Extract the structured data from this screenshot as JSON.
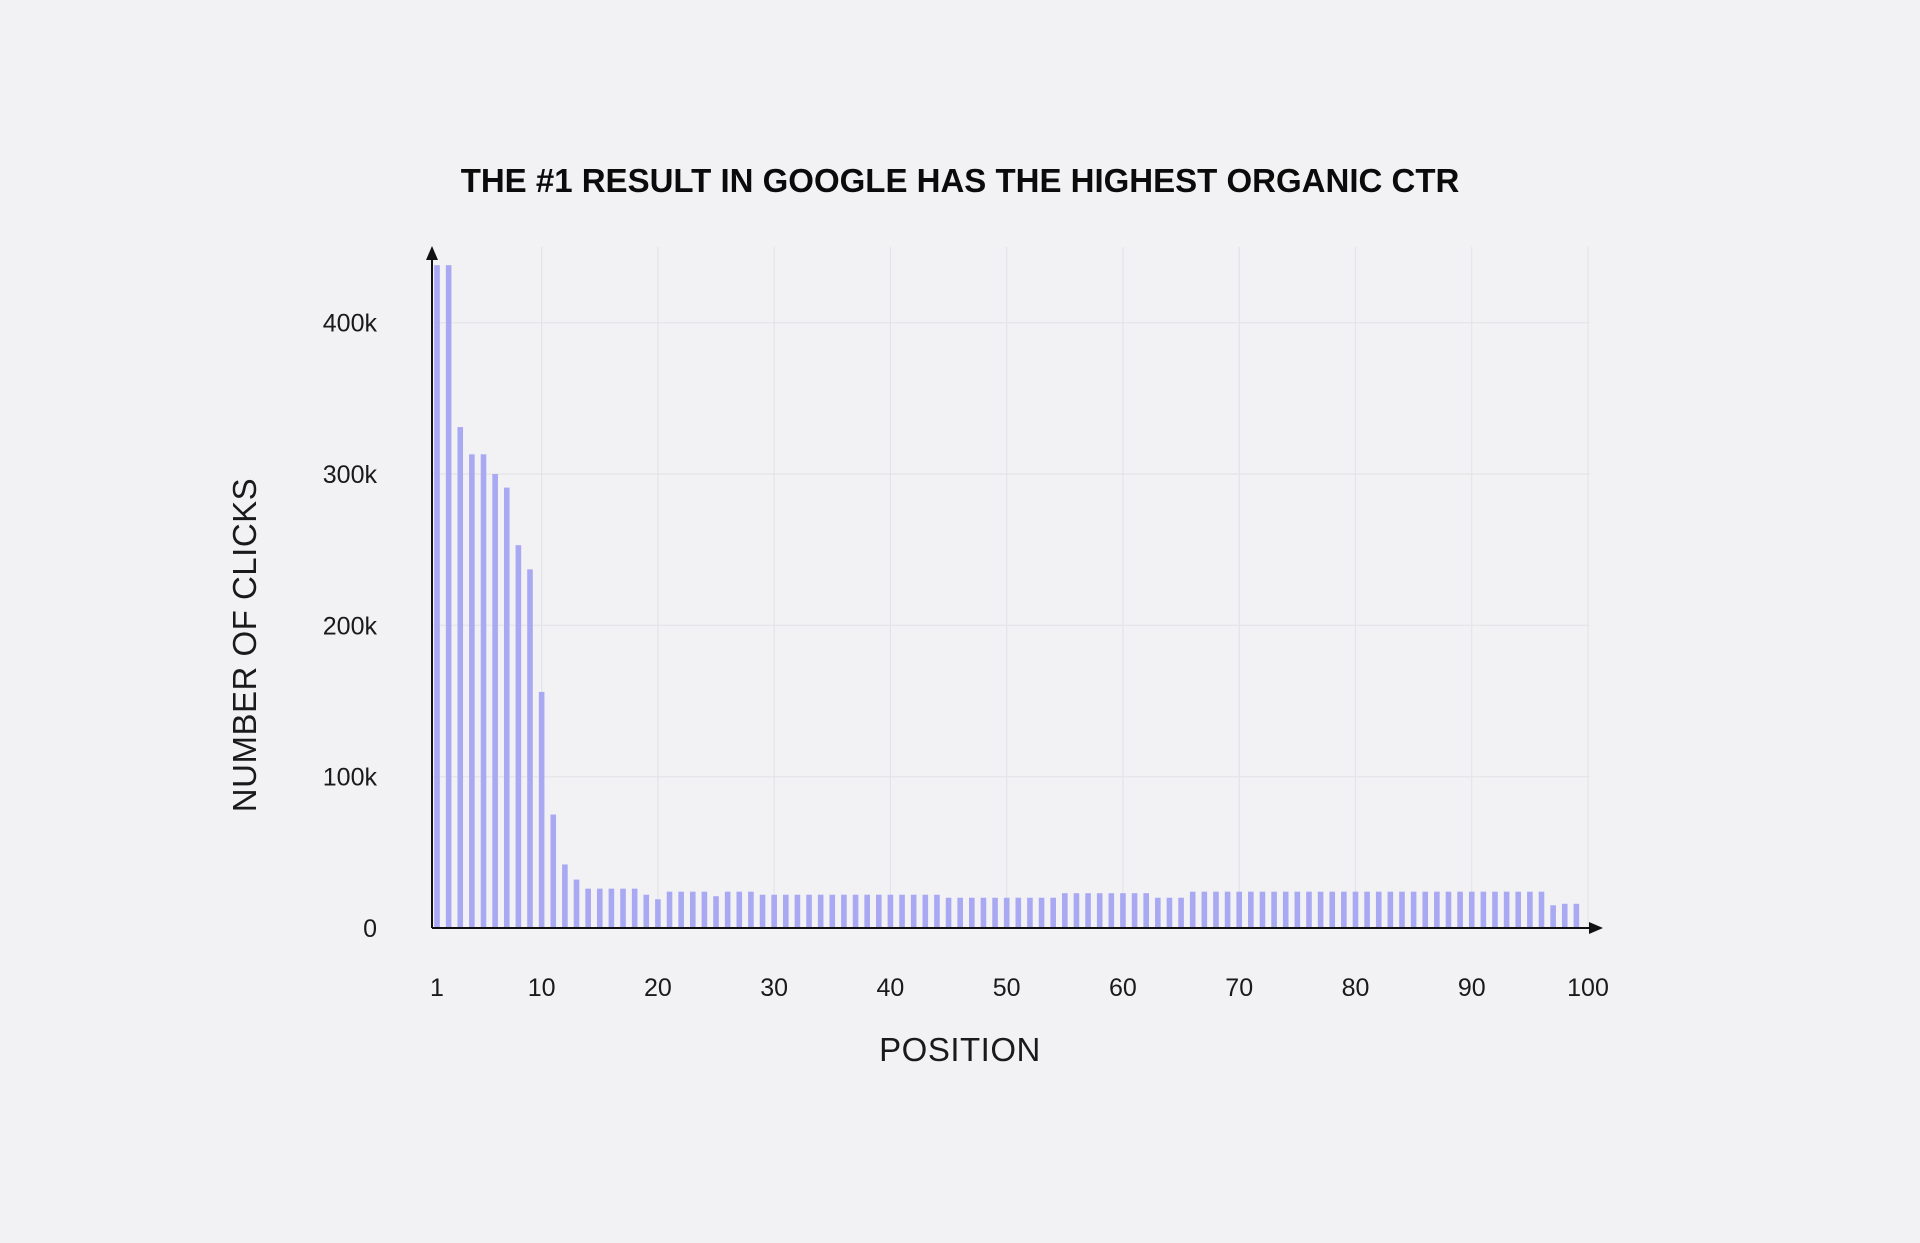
{
  "chart_data": {
    "type": "bar",
    "title": "THE #1 RESULT IN GOOGLE HAS THE HIGHEST ORGANIC CTR",
    "xlabel": "POSITION",
    "ylabel": "NUMBER OF CLICKS",
    "x_ticks": [
      "1",
      "10",
      "20",
      "30",
      "40",
      "50",
      "60",
      "70",
      "80",
      "90",
      "100"
    ],
    "y_ticks": [
      {
        "value": 0,
        "label": "0"
      },
      {
        "value": 100000,
        "label": "100k"
      },
      {
        "value": 200000,
        "label": "200k"
      },
      {
        "value": 300000,
        "label": "300k"
      },
      {
        "value": 400000,
        "label": "400k"
      }
    ],
    "ylim": [
      0,
      450000
    ],
    "xlim": [
      1,
      100
    ],
    "grid": true,
    "bar_color": "#a9a8f2",
    "series": [
      {
        "values": [
          438000,
          438000,
          331000,
          313000,
          313000,
          300000,
          291000,
          253000,
          237000,
          156000,
          75000,
          42000,
          32000,
          26000,
          26000,
          26000,
          26000,
          26000,
          22000,
          19000,
          24000,
          24000,
          24000,
          24000,
          21000,
          24000,
          24000,
          24000,
          22000,
          22000,
          22000,
          22000,
          22000,
          22000,
          22000,
          22000,
          22000,
          22000,
          22000,
          22000,
          22000,
          22000,
          22000,
          22000,
          20000,
          20000,
          20000,
          20000,
          20000,
          20000,
          20000,
          20000,
          20000,
          20000,
          23000,
          23000,
          23000,
          23000,
          23000,
          23000,
          23000,
          23000,
          20000,
          20000,
          20000,
          24000,
          24000,
          24000,
          24000,
          24000,
          24000,
          24000,
          24000,
          24000,
          24000,
          24000,
          24000,
          24000,
          24000,
          24000,
          24000,
          24000,
          24000,
          24000,
          24000,
          24000,
          24000,
          24000,
          24000,
          24000,
          24000,
          24000,
          24000,
          24000,
          24000,
          24000,
          15000,
          16000,
          16000
        ]
      }
    ]
  }
}
